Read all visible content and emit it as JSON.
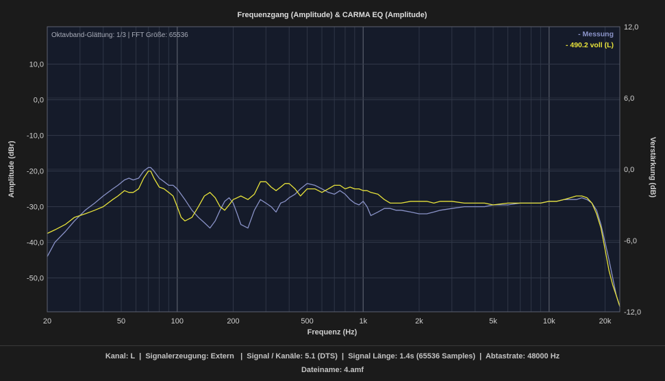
{
  "chart_data": {
    "type": "line",
    "title": "Frequenzgang (Amplitude) & CARMA EQ (Amplitude)",
    "annotation": "Oktavband-Glättung: 1/3 | FFT Größe: 65536",
    "xlabel": "Frequenz (Hz)",
    "ylabel": "Amplitude (dBr)",
    "y2label": "Verstärkung (dB)",
    "xscale": "log",
    "xlim": [
      20,
      24000
    ],
    "ylim": [
      -59.5,
      20.5
    ],
    "y2lim": [
      -12,
      12
    ],
    "x_ticks": [
      20,
      50,
      100,
      200,
      500,
      1000,
      2000,
      5000,
      10000,
      20000
    ],
    "x_tick_labels": [
      "20",
      "50",
      "100",
      "200",
      "500",
      "1k",
      "2k",
      "5k",
      "10k",
      "20k"
    ],
    "y_ticks": [
      10,
      0,
      -10,
      -20,
      -30,
      -40,
      -50
    ],
    "y_tick_labels": [
      "10,0",
      "0,0",
      "-10,0",
      "-20,0",
      "-30,0",
      "-40,0",
      "-50,0"
    ],
    "y2_ticks": [
      12,
      6,
      0,
      -6,
      -12
    ],
    "y2_tick_labels": [
      "12,0",
      "6,0",
      "0,0",
      "-6,0",
      "-12,0"
    ],
    "grid": true,
    "legend_position": "top-right",
    "series": [
      {
        "name": "- Messung",
        "color": "#8a93c8",
        "axis": "left",
        "x": [
          20,
          22,
          25,
          28,
          32,
          36,
          40,
          45,
          48,
          52,
          55,
          58,
          62,
          66,
          70,
          72,
          75,
          80,
          85,
          90,
          95,
          100,
          110,
          120,
          130,
          140,
          150,
          160,
          170,
          180,
          190,
          200,
          210,
          220,
          240,
          260,
          280,
          300,
          320,
          340,
          360,
          380,
          400,
          430,
          460,
          500,
          550,
          600,
          650,
          700,
          750,
          800,
          850,
          900,
          950,
          1000,
          1050,
          1100,
          1200,
          1300,
          1400,
          1500,
          1600,
          1800,
          2000,
          2200,
          2400,
          2600,
          3000,
          3500,
          4000,
          4500,
          5000,
          6000,
          7000,
          8000,
          9000,
          10000,
          11000,
          12000,
          13000,
          14000,
          15000,
          16000,
          17000,
          18000,
          19000,
          20000,
          21000,
          22000,
          23000,
          24000
        ],
        "values": [
          -44,
          -40,
          -37,
          -34,
          -31,
          -29,
          -27,
          -25,
          -24,
          -22.5,
          -22,
          -22.5,
          -22,
          -20,
          -19,
          -19,
          -20,
          -22,
          -23,
          -24,
          -24,
          -25,
          -28,
          -31,
          -33,
          -34.5,
          -36,
          -34,
          -31,
          -28.5,
          -27.5,
          -29,
          -32,
          -35,
          -36,
          -31,
          -28,
          -29,
          -30,
          -31.5,
          -29,
          -28.5,
          -27.5,
          -26.5,
          -25,
          -23.5,
          -24,
          -25,
          -26,
          -26.5,
          -25.5,
          -26.5,
          -28,
          -29,
          -29.5,
          -28.5,
          -30,
          -32.5,
          -31.5,
          -30.5,
          -30.5,
          -31,
          -31,
          -31.5,
          -32,
          -32,
          -31.5,
          -31,
          -30.5,
          -30,
          -30,
          -30,
          -29.5,
          -29.5,
          -29,
          -29,
          -29,
          -28.5,
          -28.5,
          -28,
          -28,
          -28,
          -27.5,
          -28,
          -29,
          -31,
          -35,
          -40,
          -45,
          -50,
          -55,
          -58
        ]
      },
      {
        "name": "- 490.2 voll (L)",
        "color": "#e8e33a",
        "axis": "left",
        "x": [
          20,
          22,
          25,
          28,
          32,
          36,
          40,
          45,
          48,
          52,
          55,
          58,
          62,
          66,
          70,
          72,
          75,
          80,
          85,
          90,
          95,
          100,
          105,
          110,
          120,
          130,
          140,
          150,
          160,
          170,
          180,
          190,
          200,
          210,
          220,
          240,
          260,
          280,
          300,
          320,
          340,
          360,
          380,
          400,
          430,
          460,
          500,
          550,
          600,
          650,
          700,
          750,
          800,
          850,
          900,
          950,
          1000,
          1050,
          1100,
          1200,
          1300,
          1400,
          1500,
          1600,
          1800,
          2000,
          2200,
          2400,
          2600,
          3000,
          3500,
          4000,
          4500,
          5000,
          6000,
          7000,
          8000,
          9000,
          10000,
          11000,
          12000,
          13000,
          14000,
          15000,
          16000,
          17000,
          18000,
          19000,
          20000,
          21000,
          22000,
          23000,
          24000
        ],
        "values": [
          -37.5,
          -36.5,
          -35,
          -33,
          -32,
          -31,
          -30,
          -28,
          -27,
          -25.5,
          -26,
          -26,
          -25,
          -22,
          -20,
          -20,
          -22,
          -24.5,
          -25,
          -26,
          -27,
          -30,
          -33,
          -34,
          -33,
          -30,
          -27,
          -26,
          -27.5,
          -30,
          -31,
          -29.5,
          -28,
          -27.5,
          -27,
          -28,
          -26.5,
          -23,
          -23,
          -24.5,
          -25.5,
          -24.5,
          -23.5,
          -23.5,
          -25,
          -27,
          -25,
          -25,
          -26,
          -25,
          -24,
          -24,
          -25,
          -24.5,
          -25,
          -25,
          -25.5,
          -25.5,
          -26,
          -26.5,
          -28,
          -29,
          -29,
          -29,
          -28.5,
          -28.5,
          -28.5,
          -29,
          -28.5,
          -28.5,
          -29,
          -29,
          -29,
          -29.5,
          -29,
          -29,
          -29,
          -29,
          -28.5,
          -28.5,
          -28,
          -27.5,
          -27,
          -27,
          -27.5,
          -29,
          -32,
          -36,
          -42,
          -48,
          -52,
          -55,
          -58
        ]
      }
    ]
  },
  "footer": {
    "line1": "Kanal: L  |  Signalerzeugung: Extern   |  Signal / Kanäle: 5.1 (DTS)  |  Signal Länge: 1.4s (65536 Samples)  |  Abtastrate: 48000 Hz",
    "line2": "Dateiname: 4.amf"
  }
}
